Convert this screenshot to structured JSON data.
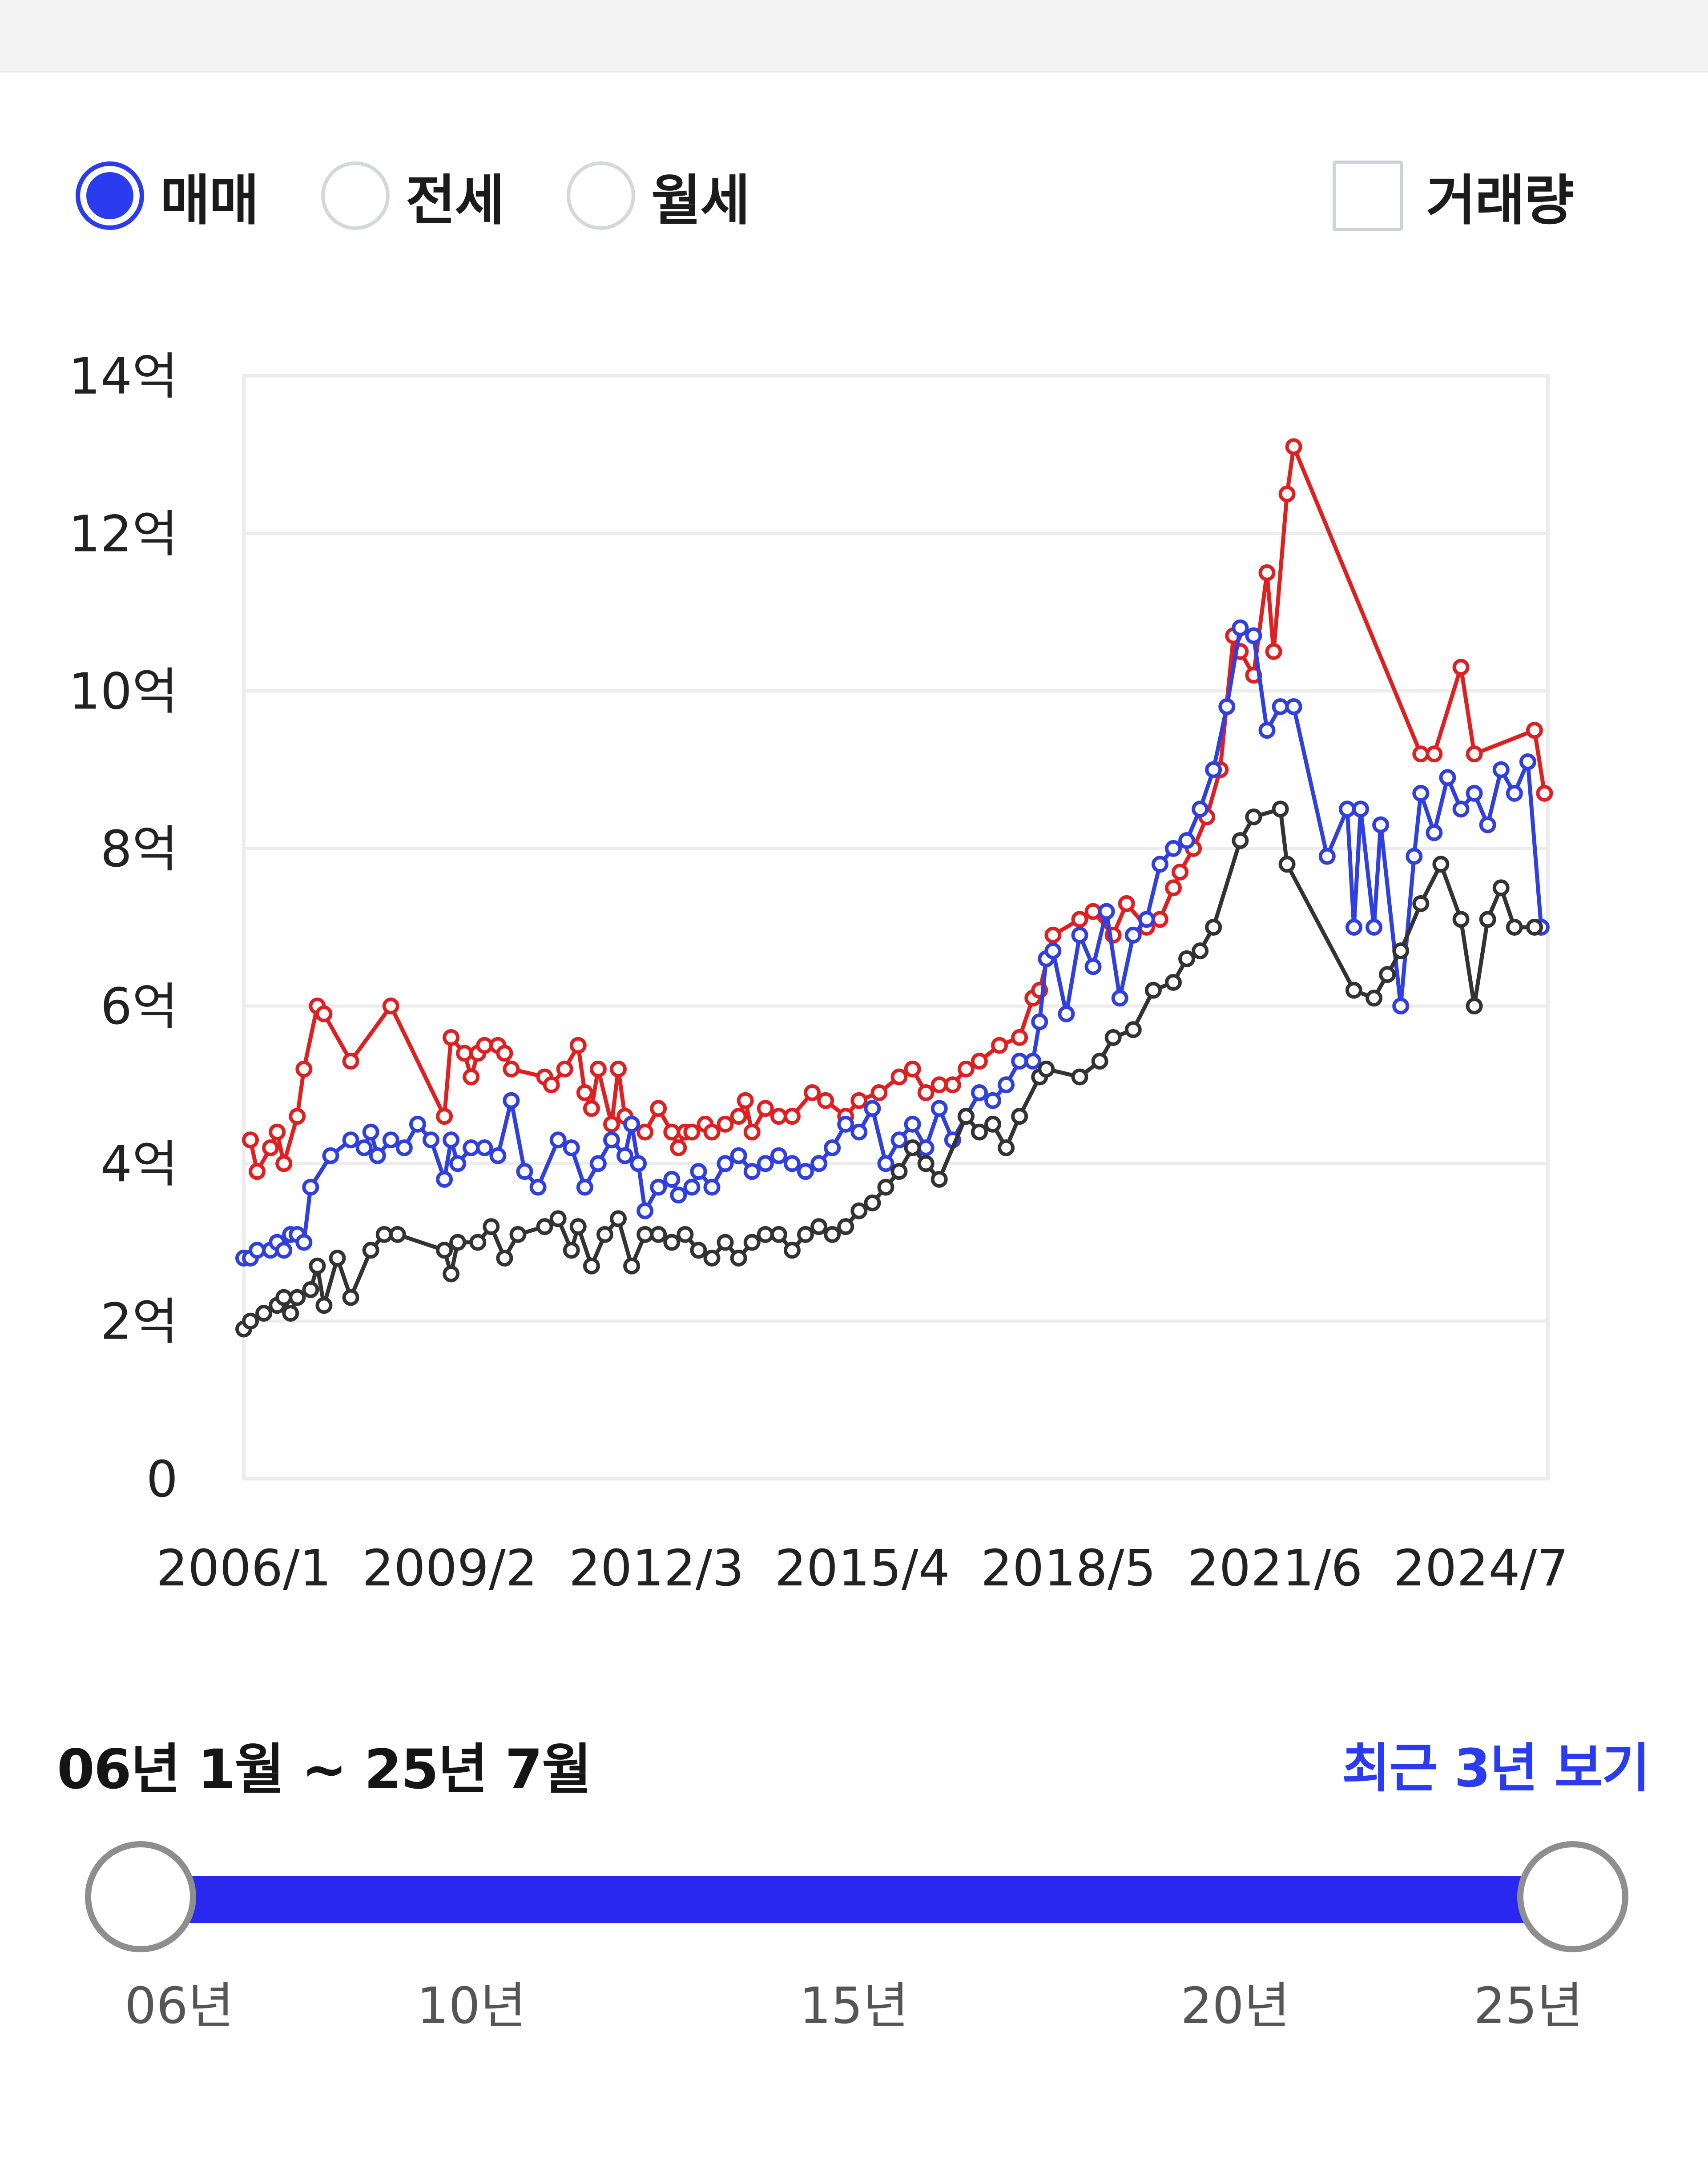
{
  "tabs": [
    {
      "label": "매매",
      "selected": true
    },
    {
      "label": "전세",
      "selected": false
    },
    {
      "label": "월세",
      "selected": false
    }
  ],
  "volume_toggle": {
    "label": "거래량",
    "checked": false
  },
  "range": {
    "label": "06년 1월 ~ 25년 7월",
    "recent_label": "최근 3년 보기"
  },
  "slider": {
    "min": "06년",
    "max": "25년",
    "ticks": [
      "06년",
      "10년",
      "15년",
      "20년",
      "25년"
    ],
    "start_year": 2006,
    "end_year": 2025.5
  },
  "colors": {
    "accent": "#2b3cf0",
    "high": "#e02020",
    "mid": "#2f3fe0",
    "low": "#333333",
    "grid": "#ececec"
  },
  "chart_data": {
    "type": "line",
    "title": "",
    "xlabel": "",
    "ylabel": "",
    "x_range": [
      2006.0,
      2025.5
    ],
    "ylim": [
      0,
      14
    ],
    "y_ticks": [
      0,
      2,
      4,
      6,
      8,
      10,
      12,
      14
    ],
    "y_tick_labels": [
      "0",
      "2억",
      "4억",
      "6억",
      "8억",
      "10억",
      "12억",
      "14억"
    ],
    "x_ticks": [
      2006.0,
      2009.08,
      2012.17,
      2015.25,
      2018.33,
      2021.42,
      2024.5
    ],
    "x_tick_labels": [
      "2006/1",
      "2009/2",
      "2012/3",
      "2015/4",
      "2018/5",
      "2021/6",
      "2024/7"
    ],
    "series": [
      {
        "name": "high",
        "color": "#e02020",
        "points": [
          [
            2006.1,
            4.3
          ],
          [
            2006.2,
            3.9
          ],
          [
            2006.4,
            4.2
          ],
          [
            2006.5,
            4.4
          ],
          [
            2006.6,
            4.0
          ],
          [
            2006.8,
            4.6
          ],
          [
            2006.9,
            5.2
          ],
          [
            2007.1,
            6.0
          ],
          [
            2007.2,
            5.9
          ],
          [
            2007.6,
            5.3
          ],
          [
            2008.2,
            6.0
          ],
          [
            2009.0,
            4.6
          ],
          [
            2009.1,
            5.6
          ],
          [
            2009.3,
            5.4
          ],
          [
            2009.4,
            5.1
          ],
          [
            2009.5,
            5.4
          ],
          [
            2009.6,
            5.5
          ],
          [
            2009.8,
            5.5
          ],
          [
            2009.9,
            5.4
          ],
          [
            2010.0,
            5.2
          ],
          [
            2010.5,
            5.1
          ],
          [
            2010.6,
            5.0
          ],
          [
            2010.8,
            5.2
          ],
          [
            2011.0,
            5.5
          ],
          [
            2011.1,
            4.9
          ],
          [
            2011.2,
            4.7
          ],
          [
            2011.3,
            5.2
          ],
          [
            2011.5,
            4.5
          ],
          [
            2011.6,
            5.2
          ],
          [
            2011.7,
            4.6
          ],
          [
            2011.8,
            4.5
          ],
          [
            2012.0,
            4.4
          ],
          [
            2012.2,
            4.7
          ],
          [
            2012.4,
            4.4
          ],
          [
            2012.5,
            4.2
          ],
          [
            2012.6,
            4.4
          ],
          [
            2012.7,
            4.4
          ],
          [
            2012.9,
            4.5
          ],
          [
            2013.0,
            4.4
          ],
          [
            2013.2,
            4.5
          ],
          [
            2013.4,
            4.6
          ],
          [
            2013.5,
            4.8
          ],
          [
            2013.6,
            4.4
          ],
          [
            2013.8,
            4.7
          ],
          [
            2014.0,
            4.6
          ],
          [
            2014.2,
            4.6
          ],
          [
            2014.5,
            4.9
          ],
          [
            2014.7,
            4.8
          ],
          [
            2015.0,
            4.6
          ],
          [
            2015.2,
            4.8
          ],
          [
            2015.5,
            4.9
          ],
          [
            2015.8,
            5.1
          ],
          [
            2016.0,
            5.2
          ],
          [
            2016.2,
            4.9
          ],
          [
            2016.4,
            5.0
          ],
          [
            2016.6,
            5.0
          ],
          [
            2016.8,
            5.2
          ],
          [
            2017.0,
            5.3
          ],
          [
            2017.3,
            5.5
          ],
          [
            2017.6,
            5.6
          ],
          [
            2017.8,
            6.1
          ],
          [
            2017.9,
            6.2
          ],
          [
            2018.1,
            6.9
          ],
          [
            2018.5,
            7.1
          ],
          [
            2018.7,
            7.2
          ],
          [
            2019.0,
            6.9
          ],
          [
            2019.2,
            7.3
          ],
          [
            2019.5,
            7.0
          ],
          [
            2019.7,
            7.1
          ],
          [
            2019.9,
            7.5
          ],
          [
            2020.0,
            7.7
          ],
          [
            2020.2,
            8.0
          ],
          [
            2020.4,
            8.4
          ],
          [
            2020.6,
            9.0
          ],
          [
            2020.8,
            10.7
          ],
          [
            2020.9,
            10.5
          ],
          [
            2021.1,
            10.2
          ],
          [
            2021.3,
            11.5
          ],
          [
            2021.4,
            10.5
          ],
          [
            2021.6,
            12.5
          ],
          [
            2021.7,
            13.1
          ],
          [
            2023.6,
            9.2
          ],
          [
            2023.8,
            9.2
          ],
          [
            2024.2,
            10.3
          ],
          [
            2024.4,
            9.2
          ],
          [
            2025.3,
            9.5
          ],
          [
            2025.45,
            8.7
          ]
        ]
      },
      {
        "name": "mid",
        "color": "#2f3fe0",
        "points": [
          [
            2006.0,
            2.8
          ],
          [
            2006.1,
            2.8
          ],
          [
            2006.2,
            2.9
          ],
          [
            2006.4,
            2.9
          ],
          [
            2006.5,
            3.0
          ],
          [
            2006.6,
            2.9
          ],
          [
            2006.7,
            3.1
          ],
          [
            2006.8,
            3.1
          ],
          [
            2006.9,
            3.0
          ],
          [
            2007.0,
            3.7
          ],
          [
            2007.3,
            4.1
          ],
          [
            2007.6,
            4.3
          ],
          [
            2007.8,
            4.2
          ],
          [
            2007.9,
            4.4
          ],
          [
            2008.0,
            4.1
          ],
          [
            2008.2,
            4.3
          ],
          [
            2008.4,
            4.2
          ],
          [
            2008.6,
            4.5
          ],
          [
            2008.8,
            4.3
          ],
          [
            2009.0,
            3.8
          ],
          [
            2009.1,
            4.3
          ],
          [
            2009.2,
            4.0
          ],
          [
            2009.4,
            4.2
          ],
          [
            2009.6,
            4.2
          ],
          [
            2009.8,
            4.1
          ],
          [
            2010.0,
            4.8
          ],
          [
            2010.2,
            3.9
          ],
          [
            2010.4,
            3.7
          ],
          [
            2010.7,
            4.3
          ],
          [
            2010.9,
            4.2
          ],
          [
            2011.1,
            3.7
          ],
          [
            2011.3,
            4.0
          ],
          [
            2011.5,
            4.3
          ],
          [
            2011.7,
            4.1
          ],
          [
            2011.8,
            4.5
          ],
          [
            2011.9,
            4.0
          ],
          [
            2012.0,
            3.4
          ],
          [
            2012.2,
            3.7
          ],
          [
            2012.4,
            3.8
          ],
          [
            2012.5,
            3.6
          ],
          [
            2012.7,
            3.7
          ],
          [
            2012.8,
            3.9
          ],
          [
            2013.0,
            3.7
          ],
          [
            2013.2,
            4.0
          ],
          [
            2013.4,
            4.1
          ],
          [
            2013.6,
            3.9
          ],
          [
            2013.8,
            4.0
          ],
          [
            2014.0,
            4.1
          ],
          [
            2014.2,
            4.0
          ],
          [
            2014.4,
            3.9
          ],
          [
            2014.6,
            4.0
          ],
          [
            2014.8,
            4.2
          ],
          [
            2015.0,
            4.5
          ],
          [
            2015.2,
            4.4
          ],
          [
            2015.4,
            4.7
          ],
          [
            2015.6,
            4.0
          ],
          [
            2015.8,
            4.3
          ],
          [
            2016.0,
            4.5
          ],
          [
            2016.2,
            4.2
          ],
          [
            2016.4,
            4.7
          ],
          [
            2016.6,
            4.3
          ],
          [
            2016.8,
            4.6
          ],
          [
            2017.0,
            4.9
          ],
          [
            2017.2,
            4.8
          ],
          [
            2017.4,
            5.0
          ],
          [
            2017.6,
            5.3
          ],
          [
            2017.8,
            5.3
          ],
          [
            2017.9,
            5.8
          ],
          [
            2018.0,
            6.6
          ],
          [
            2018.1,
            6.7
          ],
          [
            2018.3,
            5.9
          ],
          [
            2018.5,
            6.9
          ],
          [
            2018.7,
            6.5
          ],
          [
            2018.9,
            7.2
          ],
          [
            2019.1,
            6.1
          ],
          [
            2019.3,
            6.9
          ],
          [
            2019.5,
            7.1
          ],
          [
            2019.7,
            7.8
          ],
          [
            2019.9,
            8.0
          ],
          [
            2020.1,
            8.1
          ],
          [
            2020.3,
            8.5
          ],
          [
            2020.5,
            9.0
          ],
          [
            2020.7,
            9.8
          ],
          [
            2020.9,
            10.8
          ],
          [
            2021.1,
            10.7
          ],
          [
            2021.3,
            9.5
          ],
          [
            2021.5,
            9.8
          ],
          [
            2021.7,
            9.8
          ],
          [
            2022.2,
            7.9
          ],
          [
            2022.5,
            8.5
          ],
          [
            2022.6,
            7.0
          ],
          [
            2022.7,
            8.5
          ],
          [
            2022.9,
            7.0
          ],
          [
            2023.0,
            8.3
          ],
          [
            2023.3,
            6.0
          ],
          [
            2023.5,
            7.9
          ],
          [
            2023.6,
            8.7
          ],
          [
            2023.8,
            8.2
          ],
          [
            2024.0,
            8.9
          ],
          [
            2024.2,
            8.5
          ],
          [
            2024.4,
            8.7
          ],
          [
            2024.6,
            8.3
          ],
          [
            2024.8,
            9.0
          ],
          [
            2025.0,
            8.7
          ],
          [
            2025.2,
            9.1
          ],
          [
            2025.4,
            7.0
          ]
        ]
      },
      {
        "name": "low",
        "color": "#333333",
        "points": [
          [
            2006.0,
            1.9
          ],
          [
            2006.1,
            2.0
          ],
          [
            2006.3,
            2.1
          ],
          [
            2006.5,
            2.2
          ],
          [
            2006.6,
            2.3
          ],
          [
            2006.7,
            2.1
          ],
          [
            2006.8,
            2.3
          ],
          [
            2007.0,
            2.4
          ],
          [
            2007.1,
            2.7
          ],
          [
            2007.2,
            2.2
          ],
          [
            2007.4,
            2.8
          ],
          [
            2007.6,
            2.3
          ],
          [
            2007.9,
            2.9
          ],
          [
            2008.1,
            3.1
          ],
          [
            2008.3,
            3.1
          ],
          [
            2009.0,
            2.9
          ],
          [
            2009.1,
            2.6
          ],
          [
            2009.2,
            3.0
          ],
          [
            2009.5,
            3.0
          ],
          [
            2009.7,
            3.2
          ],
          [
            2009.9,
            2.8
          ],
          [
            2010.1,
            3.1
          ],
          [
            2010.5,
            3.2
          ],
          [
            2010.7,
            3.3
          ],
          [
            2010.9,
            2.9
          ],
          [
            2011.0,
            3.2
          ],
          [
            2011.2,
            2.7
          ],
          [
            2011.4,
            3.1
          ],
          [
            2011.6,
            3.3
          ],
          [
            2011.8,
            2.7
          ],
          [
            2012.0,
            3.1
          ],
          [
            2012.2,
            3.1
          ],
          [
            2012.4,
            3.0
          ],
          [
            2012.6,
            3.1
          ],
          [
            2012.8,
            2.9
          ],
          [
            2013.0,
            2.8
          ],
          [
            2013.2,
            3.0
          ],
          [
            2013.4,
            2.8
          ],
          [
            2013.6,
            3.0
          ],
          [
            2013.8,
            3.1
          ],
          [
            2014.0,
            3.1
          ],
          [
            2014.2,
            2.9
          ],
          [
            2014.4,
            3.1
          ],
          [
            2014.6,
            3.2
          ],
          [
            2014.8,
            3.1
          ],
          [
            2015.0,
            3.2
          ],
          [
            2015.2,
            3.4
          ],
          [
            2015.4,
            3.5
          ],
          [
            2015.6,
            3.7
          ],
          [
            2015.8,
            3.9
          ],
          [
            2016.0,
            4.2
          ],
          [
            2016.2,
            4.0
          ],
          [
            2016.4,
            3.8
          ],
          [
            2016.8,
            4.6
          ],
          [
            2017.0,
            4.4
          ],
          [
            2017.2,
            4.5
          ],
          [
            2017.4,
            4.2
          ],
          [
            2017.6,
            4.6
          ],
          [
            2017.9,
            5.1
          ],
          [
            2018.0,
            5.2
          ],
          [
            2018.5,
            5.1
          ],
          [
            2018.8,
            5.3
          ],
          [
            2019.0,
            5.6
          ],
          [
            2019.3,
            5.7
          ],
          [
            2019.6,
            6.2
          ],
          [
            2019.9,
            6.3
          ],
          [
            2020.1,
            6.6
          ],
          [
            2020.3,
            6.7
          ],
          [
            2020.5,
            7.0
          ],
          [
            2020.9,
            8.1
          ],
          [
            2021.1,
            8.4
          ],
          [
            2021.5,
            8.5
          ],
          [
            2021.6,
            7.8
          ],
          [
            2022.6,
            6.2
          ],
          [
            2022.9,
            6.1
          ],
          [
            2023.1,
            6.4
          ],
          [
            2023.3,
            6.7
          ],
          [
            2023.6,
            7.3
          ],
          [
            2023.9,
            7.8
          ],
          [
            2024.2,
            7.1
          ],
          [
            2024.4,
            6.0
          ],
          [
            2024.6,
            7.1
          ],
          [
            2024.8,
            7.5
          ],
          [
            2025.0,
            7.0
          ],
          [
            2025.3,
            7.0
          ]
        ]
      }
    ]
  }
}
